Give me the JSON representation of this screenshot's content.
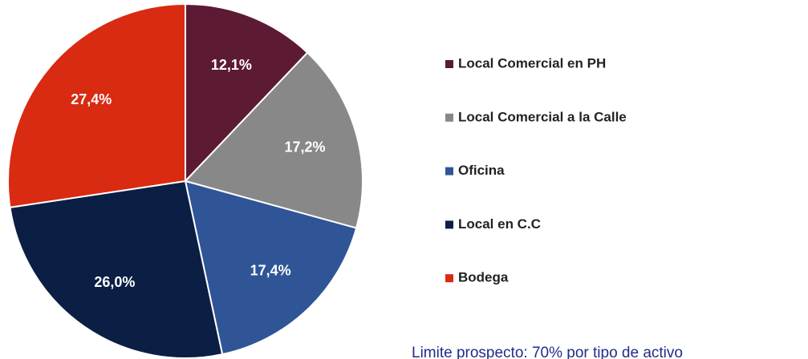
{
  "chart_data": {
    "type": "pie",
    "categories": [
      "Local Comercial en PH",
      "Local Comercial a la Calle",
      "Oficina",
      "Local en C.C",
      "Bodega"
    ],
    "values": [
      12.1,
      17.2,
      17.4,
      26.0,
      27.4
    ],
    "value_labels": [
      "12,1%",
      "17,2%",
      "17,4%",
      "26,0%",
      "27,4%"
    ],
    "colors": [
      "#5c1a34",
      "#888888",
      "#2f5597",
      "#0b1f45",
      "#d92a12"
    ],
    "legend": "right",
    "annotation": "Limite prospecto: 70% por tipo de activo"
  }
}
